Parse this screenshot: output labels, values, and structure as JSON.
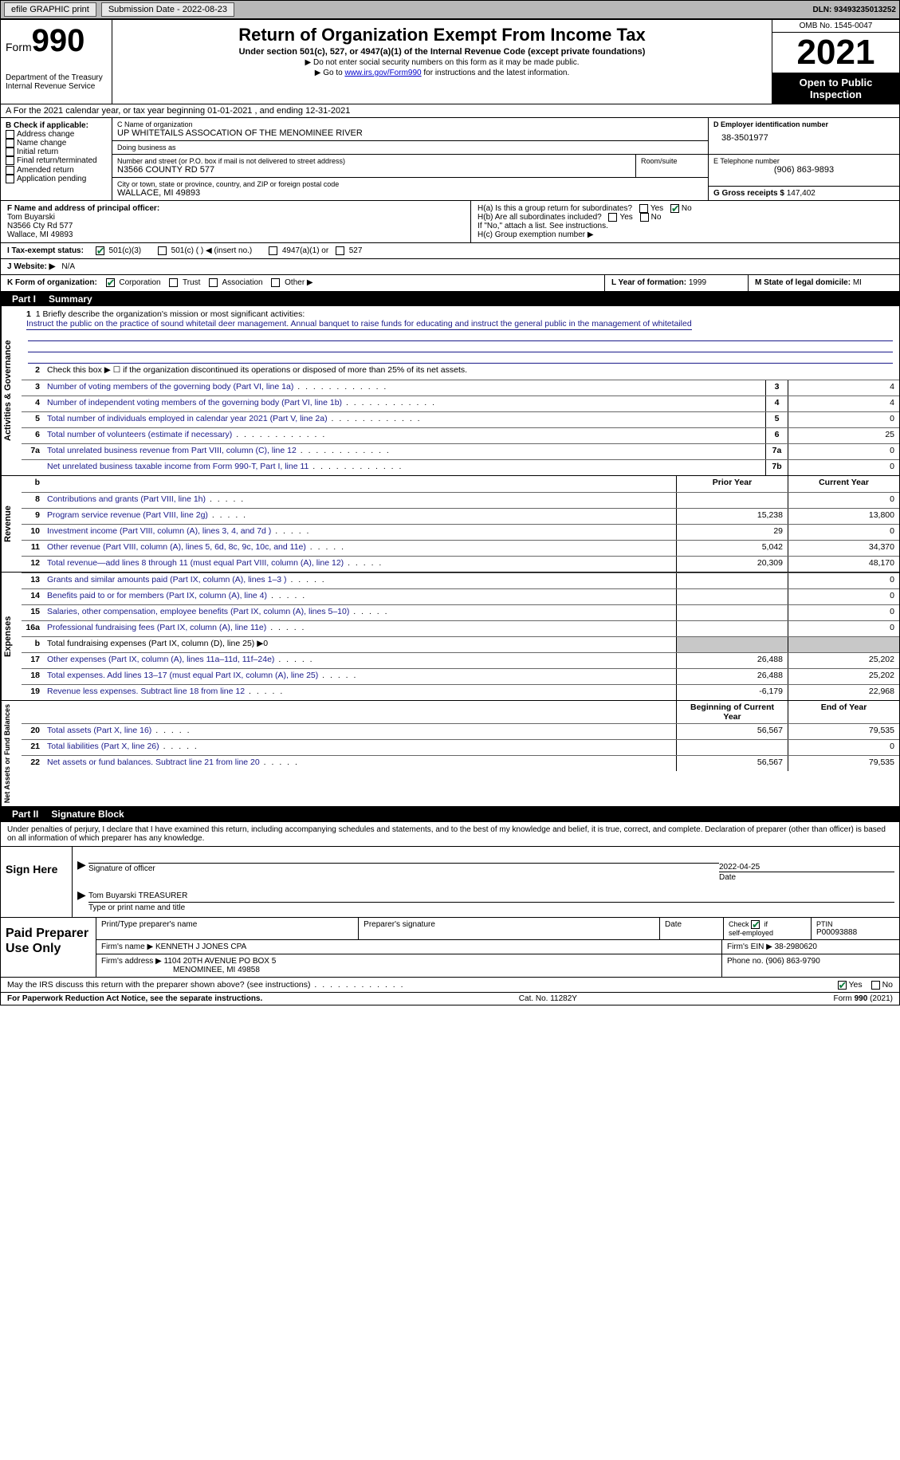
{
  "topbar": {
    "efile": "efile GRAPHIC print",
    "submission_label": "Submission Date - 2022-08-23",
    "dln": "DLN: 93493235013252"
  },
  "header": {
    "form_prefix": "Form",
    "form_number": "990",
    "dept": "Department of the Treasury",
    "irs": "Internal Revenue Service",
    "title": "Return of Organization Exempt From Income Tax",
    "subtitle": "Under section 501(c), 527, or 4947(a)(1) of the Internal Revenue Code (except private foundations)",
    "note1": "▶ Do not enter social security numbers on this form as it may be made public.",
    "note2_pre": "▶ Go to ",
    "note2_link": "www.irs.gov/Form990",
    "note2_post": " for instructions and the latest information.",
    "omb": "OMB No. 1545-0047",
    "year": "2021",
    "open": "Open to Public Inspection"
  },
  "rowA": "A For the 2021 calendar year, or tax year beginning 01-01-2021   , and ending 12-31-2021",
  "colB": {
    "title": "B Check if applicable:",
    "opts": [
      "Address change",
      "Name change",
      "Initial return",
      "Final return/terminated",
      "Amended return",
      "Application pending"
    ]
  },
  "colC": {
    "name_lbl": "C Name of organization",
    "name": "UP WHITETAILS ASSOCATION OF THE MENOMINEE RIVER",
    "dba_lbl": "Doing business as",
    "dba": "",
    "street_lbl": "Number and street (or P.O. box if mail is not delivered to street address)",
    "room_lbl": "Room/suite",
    "street": "N3566 COUNTY RD 577",
    "city_lbl": "City or town, state or province, country, and ZIP or foreign postal code",
    "city": "WALLACE, MI  49893"
  },
  "colD": {
    "ein_lbl": "D Employer identification number",
    "ein": "38-3501977",
    "tel_lbl": "E Telephone number",
    "tel": "(906) 863-9893",
    "gross_lbl": "G Gross receipts $",
    "gross": "147,402"
  },
  "rowF": {
    "lbl": "F  Name and address of principal officer:",
    "name": "Tom Buyarski",
    "street": "N3566 Cty Rd 577",
    "city": "Wallace, MI  49893"
  },
  "rowH": {
    "a": "H(a)  Is this a group return for subordinates?",
    "b": "H(b)  Are all subordinates included?",
    "note": "If \"No,\" attach a list. See instructions.",
    "c": "H(c)  Group exemption number ▶"
  },
  "yes": "Yes",
  "no": "No",
  "rowI": {
    "lbl": "I   Tax-exempt status:",
    "o1": "501(c)(3)",
    "o2": "501(c) (  ) ◀ (insert no.)",
    "o3": "4947(a)(1) or",
    "o4": "527"
  },
  "rowJ": {
    "lbl": "J   Website: ▶",
    "val": "N/A"
  },
  "rowK": {
    "lbl": "K Form of organization:",
    "o1": "Corporation",
    "o2": "Trust",
    "o3": "Association",
    "o4": "Other ▶"
  },
  "rowL": {
    "lbl": "L Year of formation:",
    "val": "1999"
  },
  "rowM": {
    "lbl": "M State of legal domicile:",
    "val": "MI"
  },
  "parts": {
    "p1": "Part I",
    "p1t": "Summary",
    "p2": "Part II",
    "p2t": "Signature Block"
  },
  "summary": {
    "s1_lbl": "1  Briefly describe the organization's mission or most significant activities:",
    "s1_txt": "Instruct the public on the practice of sound whitetail deer management. Annual banquet to raise funds for educating and instruct the general public in the management of whitetailed",
    "s2": "Check this box ▶ ☐  if the organization discontinued its operations or disposed of more than 25% of its net assets.",
    "rows_ag": [
      {
        "n": "3",
        "t": "Number of voting members of the governing body (Part VI, line 1a)",
        "b": "3",
        "v": "4"
      },
      {
        "n": "4",
        "t": "Number of independent voting members of the governing body (Part VI, line 1b)",
        "b": "4",
        "v": "4"
      },
      {
        "n": "5",
        "t": "Total number of individuals employed in calendar year 2021 (Part V, line 2a)",
        "b": "5",
        "v": "0"
      },
      {
        "n": "6",
        "t": "Total number of volunteers (estimate if necessary)",
        "b": "6",
        "v": "25"
      },
      {
        "n": "7a",
        "t": "Total unrelated business revenue from Part VIII, column (C), line 12",
        "b": "7a",
        "v": "0"
      },
      {
        "n": "",
        "t": "Net unrelated business taxable income from Form 990-T, Part I, line 11",
        "b": "7b",
        "v": "0"
      }
    ],
    "hdr_prior": "Prior Year",
    "hdr_curr": "Current Year",
    "rows_rev": [
      {
        "n": "8",
        "t": "Contributions and grants (Part VIII, line 1h)",
        "p": "",
        "c": "0"
      },
      {
        "n": "9",
        "t": "Program service revenue (Part VIII, line 2g)",
        "p": "15,238",
        "c": "13,800"
      },
      {
        "n": "10",
        "t": "Investment income (Part VIII, column (A), lines 3, 4, and 7d )",
        "p": "29",
        "c": "0"
      },
      {
        "n": "11",
        "t": "Other revenue (Part VIII, column (A), lines 5, 6d, 8c, 9c, 10c, and 11e)",
        "p": "5,042",
        "c": "34,370"
      },
      {
        "n": "12",
        "t": "Total revenue—add lines 8 through 11 (must equal Part VIII, column (A), line 12)",
        "p": "20,309",
        "c": "48,170"
      }
    ],
    "rows_exp": [
      {
        "n": "13",
        "t": "Grants and similar amounts paid (Part IX, column (A), lines 1–3 )",
        "p": "",
        "c": "0"
      },
      {
        "n": "14",
        "t": "Benefits paid to or for members (Part IX, column (A), line 4)",
        "p": "",
        "c": "0"
      },
      {
        "n": "15",
        "t": "Salaries, other compensation, employee benefits (Part IX, column (A), lines 5–10)",
        "p": "",
        "c": "0"
      },
      {
        "n": "16a",
        "t": "Professional fundraising fees (Part IX, column (A), line 11e)",
        "p": "",
        "c": "0"
      },
      {
        "n": "b",
        "t": "Total fundraising expenses (Part IX, column (D), line 25) ▶0",
        "p": "shade",
        "c": "shade",
        "black": true
      },
      {
        "n": "17",
        "t": "Other expenses (Part IX, column (A), lines 11a–11d, 11f–24e)",
        "p": "26,488",
        "c": "25,202"
      },
      {
        "n": "18",
        "t": "Total expenses. Add lines 13–17 (must equal Part IX, column (A), line 25)",
        "p": "26,488",
        "c": "25,202"
      },
      {
        "n": "19",
        "t": "Revenue less expenses. Subtract line 18 from line 12",
        "p": "-6,179",
        "c": "22,968"
      }
    ],
    "hdr_beg": "Beginning of Current Year",
    "hdr_end": "End of Year",
    "rows_net": [
      {
        "n": "20",
        "t": "Total assets (Part X, line 16)",
        "p": "56,567",
        "c": "79,535"
      },
      {
        "n": "21",
        "t": "Total liabilities (Part X, line 26)",
        "p": "",
        "c": "0"
      },
      {
        "n": "22",
        "t": "Net assets or fund balances. Subtract line 21 from line 20",
        "p": "56,567",
        "c": "79,535"
      }
    ],
    "side_ag": "Activities & Governance",
    "side_rev": "Revenue",
    "side_exp": "Expenses",
    "side_net": "Net Assets or Fund Balances"
  },
  "penalties": "Under penalties of perjury, I declare that I have examined this return, including accompanying schedules and statements, and to the best of my knowledge and belief, it is true, correct, and complete. Declaration of preparer (other than officer) is based on all information of which preparer has any knowledge.",
  "sign": {
    "here": "Sign Here",
    "sig_lbl": "Signature of officer",
    "date": "2022-04-25",
    "date_lbl": "Date",
    "name": "Tom Buyarski TREASURER",
    "name_lbl": "Type or print name and title"
  },
  "prep": {
    "title": "Paid Preparer Use Only",
    "r1": {
      "c1": "Print/Type preparer's name",
      "c2": "Preparer's signature",
      "c3": "Date",
      "c4_lbl": "Check ☑ if self-employed",
      "c5_lbl": "PTIN",
      "c5": "P00093888"
    },
    "r2": {
      "lbl": "Firm's name   ▶",
      "val": "KENNETH J JONES CPA",
      "ein_lbl": "Firm's EIN ▶",
      "ein": "38-2980620"
    },
    "r3": {
      "lbl": "Firm's address ▶",
      "val1": "1104 20TH AVENUE PO BOX 5",
      "val2": "MENOMINEE, MI  49858",
      "ph_lbl": "Phone no.",
      "ph": "(906) 863-9790"
    }
  },
  "may": "May the IRS discuss this return with the preparer shown above? (see instructions)",
  "footer": {
    "left": "For Paperwork Reduction Act Notice, see the separate instructions.",
    "mid": "Cat. No. 11282Y",
    "right": "Form 990 (2021)"
  }
}
